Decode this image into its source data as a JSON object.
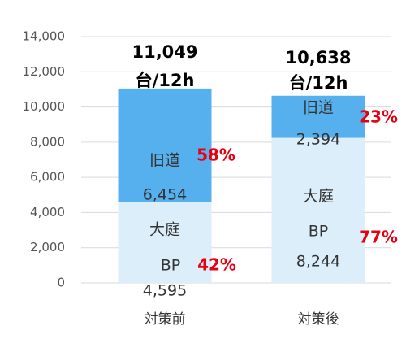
{
  "chart_data": {
    "type": "stacked_bar",
    "categories": [
      "対策前",
      "対策後"
    ],
    "series": [
      {
        "name_lines": [
          "大庭",
          "BP"
        ],
        "color": "#ddeefb",
        "values": [
          4595,
          8244
        ],
        "value_labels": [
          "4,595",
          "8,244"
        ],
        "share_labels": [
          "42%",
          "77%"
        ]
      },
      {
        "name_lines": [
          "旧道"
        ],
        "color": "#56b0ee",
        "values": [
          6454,
          2394
        ],
        "value_labels": [
          "6,454",
          "2,394"
        ],
        "share_labels": [
          "58%",
          "23%"
        ]
      }
    ],
    "total_labels": [
      "11,049",
      "10,638"
    ],
    "total_unit": "台/12h",
    "ylim": [
      0,
      14000
    ],
    "yticks": [
      {
        "value": 0,
        "label": "0"
      },
      {
        "value": 2000,
        "label": "2,000"
      },
      {
        "value": 4000,
        "label": "4,000"
      },
      {
        "value": 6000,
        "label": "6,000"
      },
      {
        "value": 8000,
        "label": "8,000"
      },
      {
        "value": 10000,
        "label": "10,000"
      },
      {
        "value": 12000,
        "label": "12,000"
      },
      {
        "value": 14000,
        "label": "14,000"
      }
    ],
    "grid": true
  }
}
